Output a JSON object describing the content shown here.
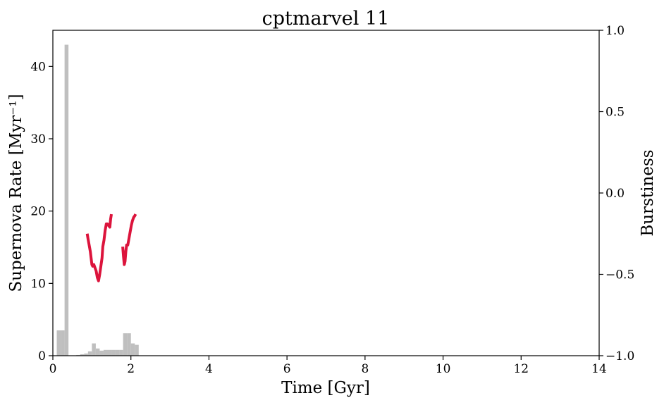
{
  "chart_data": {
    "type": "bar",
    "title": "cptmarvel 11",
    "xlabel": "Time [Gyr]",
    "ylabel": "Supernova Rate [Myr⁻¹]",
    "y2label": "Burstiness",
    "xlim": [
      0,
      14
    ],
    "ylim": [
      0,
      45
    ],
    "y2lim": [
      -1.0,
      1.0
    ],
    "xticks": [
      "0",
      "2",
      "4",
      "6",
      "8",
      "10",
      "12",
      "14"
    ],
    "yticks": [
      "0",
      "10",
      "20",
      "30",
      "40"
    ],
    "y2ticks": [
      "−1.0",
      "−0.5",
      "0.0",
      "0.5",
      "1.0"
    ],
    "grid": false,
    "colors": {
      "histogram": "#bfbfbf",
      "burstiness": "#dc143c"
    },
    "histogram": {
      "bin_width": 0.1,
      "bins": [
        {
          "x": 0.15,
          "value": 3.5
        },
        {
          "x": 0.25,
          "value": 3.5
        },
        {
          "x": 0.35,
          "value": 43.0
        },
        {
          "x": 0.65,
          "value": 0.1
        },
        {
          "x": 0.75,
          "value": 0.2
        },
        {
          "x": 0.85,
          "value": 0.3
        },
        {
          "x": 0.95,
          "value": 0.6
        },
        {
          "x": 1.05,
          "value": 1.7
        },
        {
          "x": 1.15,
          "value": 1.0
        },
        {
          "x": 1.25,
          "value": 0.7
        },
        {
          "x": 1.35,
          "value": 0.8
        },
        {
          "x": 1.45,
          "value": 0.8
        },
        {
          "x": 1.55,
          "value": 0.8
        },
        {
          "x": 1.65,
          "value": 0.8
        },
        {
          "x": 1.75,
          "value": 0.8
        },
        {
          "x": 1.85,
          "value": 3.1
        },
        {
          "x": 1.95,
          "value": 3.1
        },
        {
          "x": 2.05,
          "value": 1.7
        },
        {
          "x": 2.15,
          "value": 1.5
        }
      ]
    },
    "series": [
      {
        "values": [
          [
            0.88,
            -0.25
          ],
          [
            0.9,
            -0.28
          ],
          [
            0.93,
            -0.32
          ],
          [
            0.96,
            -0.36
          ],
          [
            0.98,
            -0.4
          ],
          [
            1.0,
            -0.44
          ],
          [
            1.02,
            -0.45
          ],
          [
            1.05,
            -0.44
          ],
          [
            1.08,
            -0.46
          ],
          [
            1.11,
            -0.48
          ],
          [
            1.14,
            -0.52
          ],
          [
            1.17,
            -0.54
          ],
          [
            1.2,
            -0.5
          ],
          [
            1.23,
            -0.45
          ],
          [
            1.26,
            -0.4
          ],
          [
            1.28,
            -0.33
          ],
          [
            1.31,
            -0.29
          ],
          [
            1.34,
            -0.23
          ],
          [
            1.37,
            -0.19
          ],
          [
            1.4,
            -0.19
          ],
          [
            1.43,
            -0.2
          ],
          [
            1.46,
            -0.21
          ],
          [
            1.48,
            -0.16
          ],
          [
            1.5,
            -0.13
          ]
        ]
      },
      {
        "values": [
          [
            1.79,
            -0.33
          ],
          [
            1.81,
            -0.39
          ],
          [
            1.83,
            -0.44
          ],
          [
            1.85,
            -0.42
          ],
          [
            1.87,
            -0.36
          ],
          [
            1.89,
            -0.32
          ],
          [
            1.92,
            -0.32
          ],
          [
            1.95,
            -0.28
          ],
          [
            1.98,
            -0.24
          ],
          [
            2.01,
            -0.2
          ],
          [
            2.04,
            -0.17
          ],
          [
            2.07,
            -0.15
          ],
          [
            2.1,
            -0.14
          ],
          [
            2.12,
            -0.13
          ]
        ]
      }
    ]
  }
}
